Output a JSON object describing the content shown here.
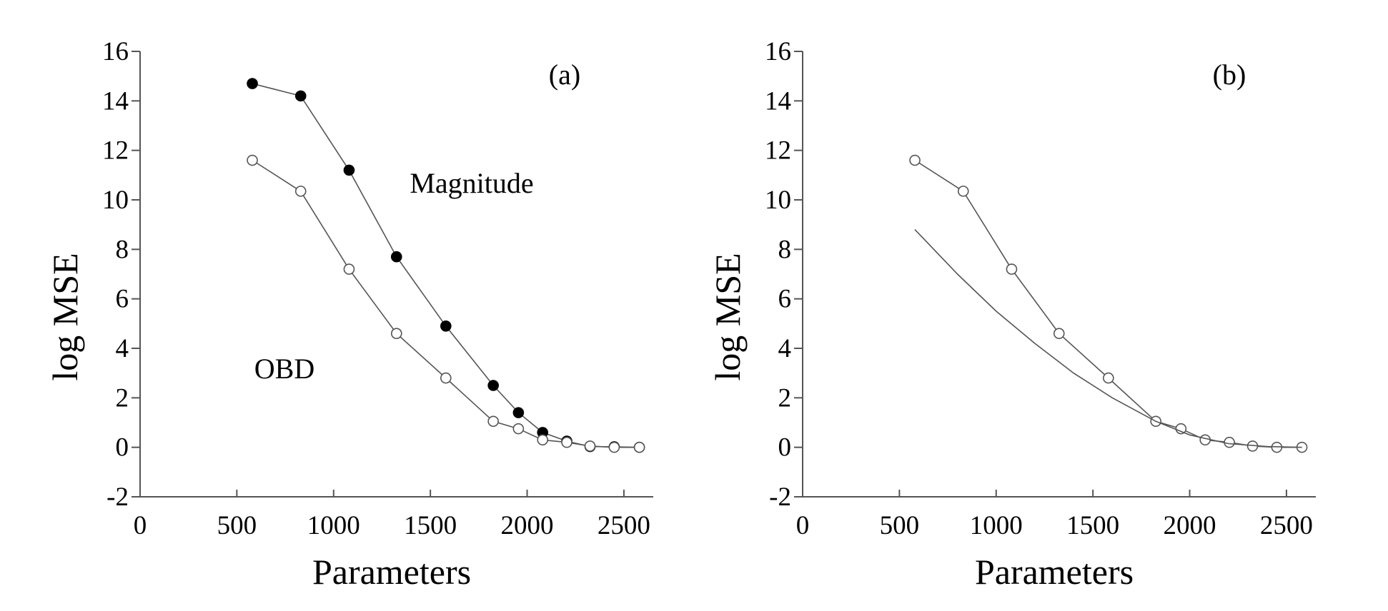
{
  "chart_data": [
    {
      "type": "line",
      "panel_label": "(a)",
      "xlabel": "Parameters",
      "ylabel": "log MSE",
      "xlim": [
        0,
        2600
      ],
      "ylim": [
        -2,
        16
      ],
      "xticks": [
        0,
        500,
        1000,
        1500,
        2000,
        2500
      ],
      "yticks": [
        -2,
        0,
        2,
        4,
        6,
        8,
        10,
        12,
        14,
        16
      ],
      "annotations": [
        "Magnitude",
        "OBD"
      ],
      "series": [
        {
          "marker": "filled-circle",
          "x": [
            580,
            830,
            1080,
            1325,
            1580,
            1825,
            1955,
            2080,
            2205,
            2325,
            2450,
            2580
          ],
          "y": [
            14.7,
            14.2,
            11.2,
            7.7,
            4.9,
            2.5,
            1.4,
            0.6,
            0.25,
            0.03,
            0.02,
            0.0
          ]
        },
        {
          "marker": "open-circle",
          "x": [
            580,
            830,
            1080,
            1325,
            1580,
            1825,
            1955,
            2080,
            2205,
            2325,
            2450,
            2580
          ],
          "y": [
            11.6,
            10.35,
            7.2,
            4.6,
            2.8,
            1.05,
            0.75,
            0.3,
            0.2,
            0.05,
            0.0,
            0.0
          ]
        }
      ]
    },
    {
      "type": "line",
      "panel_label": "(b)",
      "xlabel": "Parameters",
      "ylabel": "log MSE",
      "xlim": [
        0,
        2600
      ],
      "ylim": [
        -2,
        16
      ],
      "xticks": [
        0,
        500,
        1000,
        1500,
        2000,
        2500
      ],
      "yticks": [
        -2,
        0,
        2,
        4,
        6,
        8,
        10,
        12,
        14,
        16
      ],
      "series": [
        {
          "marker": "open-circle",
          "x": [
            580,
            830,
            1080,
            1325,
            1580,
            1825,
            1955,
            2080,
            2205,
            2325,
            2450,
            2580
          ],
          "y": [
            11.6,
            10.35,
            7.2,
            4.6,
            2.8,
            1.05,
            0.75,
            0.3,
            0.2,
            0.05,
            0.0,
            0.0
          ]
        },
        {
          "marker": "none",
          "x": [
            580,
            800,
            1000,
            1200,
            1400,
            1600,
            1825,
            2000,
            2200,
            2400,
            2580
          ],
          "y": [
            8.8,
            7.0,
            5.5,
            4.2,
            3.0,
            2.0,
            1.05,
            0.5,
            0.15,
            0.03,
            0.0
          ]
        }
      ]
    }
  ]
}
